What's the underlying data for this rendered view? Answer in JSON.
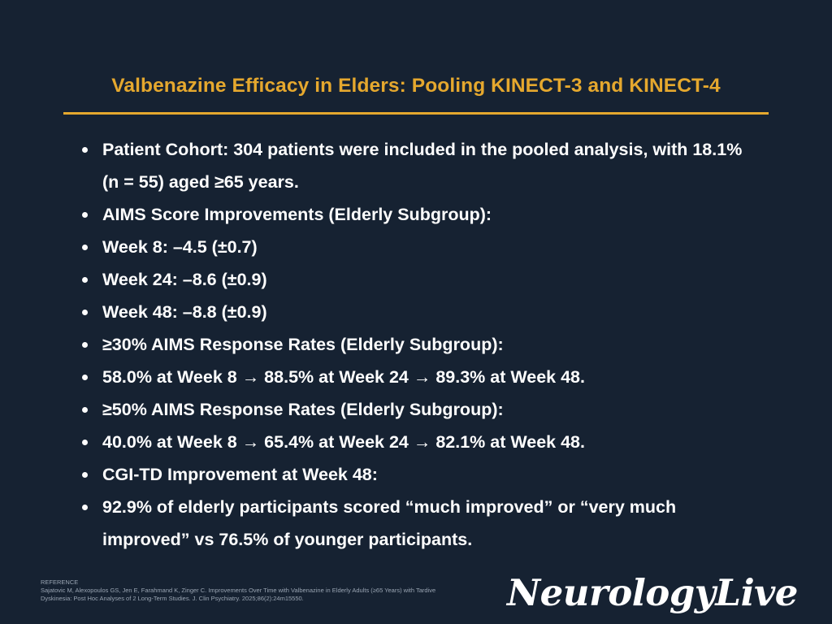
{
  "slide": {
    "title": "Valbenazine Efficacy in Elders: Pooling KINECT-3 and KINECT-4",
    "bullets": [
      "Patient Cohort: 304 patients were included in the pooled analysis, with 18.1% (n = 55) aged ≥65 years.",
      "AIMS Score Improvements (Elderly Subgroup):",
      "Week 8: –4.5 (±0.7)",
      "Week 24: –8.6 (±0.9)",
      "Week 48: –8.8 (±0.9)",
      "≥30% AIMS Response Rates (Elderly Subgroup):",
      "58.0% at Week 8 → 88.5% at Week 24 → 89.3% at Week 48.",
      "≥50% AIMS Response Rates (Elderly Subgroup):",
      "40.0% at Week 8 → 65.4% at Week 24 → 82.1% at Week 48.",
      "CGI-TD Improvement at Week 48:",
      "92.9% of elderly participants scored “much improved” or “very much improved” vs 76.5% of younger participants."
    ]
  },
  "reference": {
    "heading": "REFERENCE",
    "text": "Sajatovic M, Alexopoulos GS, Jen E, Farahmand K, Zinger C. Improvements Over Time with Valbenazine in Elderly Adults (≥65 Years) with Tardive Dyskinesia: Post Hoc Analyses of 2 Long-Term Studies. J. Clin Psychiatry. 2025;86(2):24m15550."
  },
  "brand": {
    "logo_text": "NeurologyLive"
  },
  "colors": {
    "background": "#162232",
    "accent": "#E5A82E",
    "text": "#FFFFFF"
  }
}
